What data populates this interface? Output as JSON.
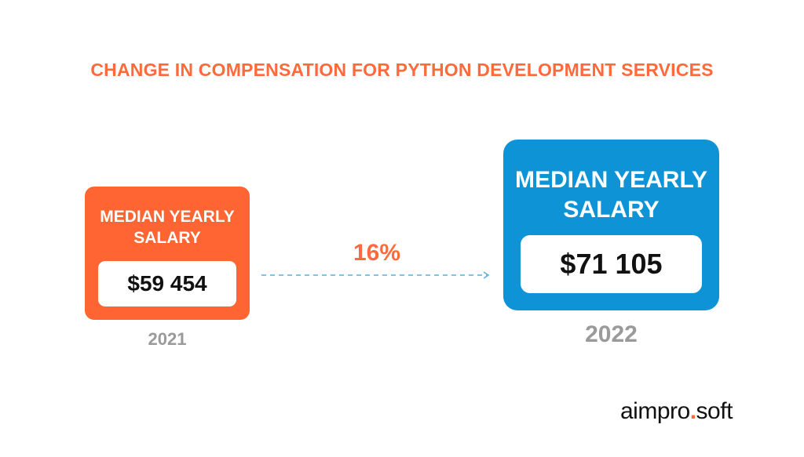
{
  "title": "CHANGE IN COMPENSATION FOR PYTHON DEVELOPMENT SERVICES",
  "card_2021": {
    "label_line1": "MEDIAN YEARLY",
    "label_line2": "SALARY",
    "value": "$59 454",
    "year": "2021",
    "color": "#ff6533"
  },
  "card_2022": {
    "label_line1": "MEDIAN YEARLY",
    "label_line2": "SALARY",
    "value": "$71 105",
    "year": "2022",
    "color": "#0e94d6"
  },
  "change": {
    "percent": "16%",
    "arrow_icon": "dashed-arrow-right-icon"
  },
  "logo": {
    "part1": "aimpro",
    "dot": ".",
    "part2": "soft",
    "accent_color": "#ff6a3d"
  }
}
